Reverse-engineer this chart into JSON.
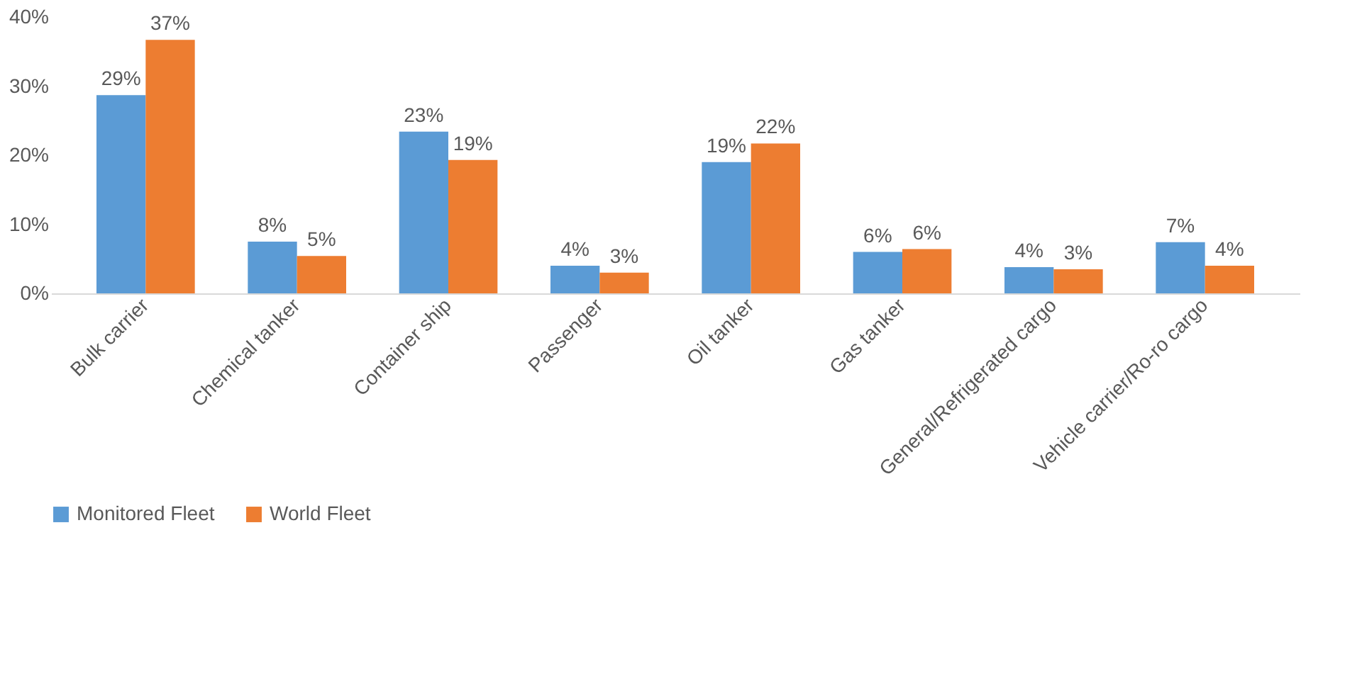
{
  "chart_data": {
    "type": "bar",
    "categories": [
      "Bulk carrier",
      "Chemical tanker",
      "Container ship",
      "Passenger",
      "Oil tanker",
      "Gas tanker",
      "General/Refrigerated cargo",
      "Vehicle carrier/Ro-ro cargo"
    ],
    "series": [
      {
        "name": "Monitored Fleet",
        "color": "#5b9bd5",
        "values": [
          28.7,
          7.5,
          23.4,
          4.0,
          19.0,
          6.0,
          3.8,
          7.4
        ],
        "value_labels": [
          "29%",
          "8%",
          "23%",
          "4%",
          "19%",
          "6%",
          "4%",
          "7%"
        ]
      },
      {
        "name": "World Fleet",
        "color": "#ed7d31",
        "values": [
          36.7,
          5.4,
          19.3,
          3.0,
          21.7,
          6.4,
          3.5,
          4.0
        ],
        "value_labels": [
          "37%",
          "5%",
          "19%",
          "3%",
          "22%",
          "6%",
          "3%",
          "4%"
        ]
      }
    ],
    "ylim": [
      0,
      40
    ],
    "yticks": [
      {
        "value": 0,
        "label": "0%"
      },
      {
        "value": 10,
        "label": "10%"
      },
      {
        "value": 20,
        "label": "20%"
      },
      {
        "value": 30,
        "label": "30%"
      },
      {
        "value": 40,
        "label": "40%"
      }
    ],
    "grid": false,
    "legend": "bottom"
  }
}
